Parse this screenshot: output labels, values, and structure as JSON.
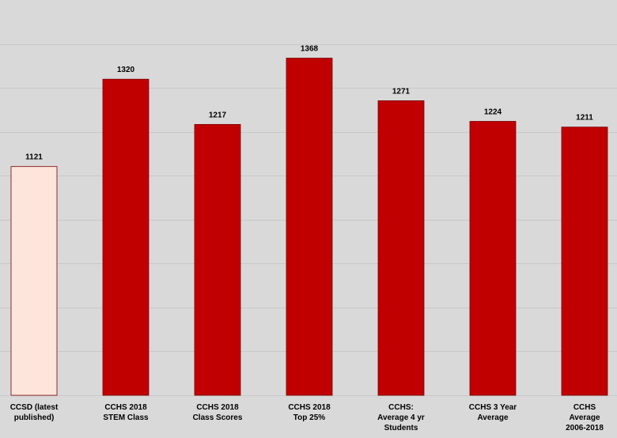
{
  "chart_data": {
    "type": "bar",
    "categories": [
      [
        "CCSD (latest",
        "published)"
      ],
      [
        "CCHS 2018",
        "STEM Class"
      ],
      [
        "CCHS 2018",
        "Class Scores"
      ],
      [
        "CCHS 2018",
        "Top 25%"
      ],
      [
        "CCHS:",
        "Average 4 yr",
        "Students"
      ],
      [
        "CCHS  3 Year",
        "Average"
      ],
      [
        "CCHS",
        "Average",
        "2006-2018"
      ]
    ],
    "values": [
      1121,
      1320,
      1217,
      1368,
      1271,
      1224,
      1211
    ],
    "value_labels": [
      "1121",
      "1320",
      "1217",
      "1368",
      "1271",
      "1224",
      "1211"
    ],
    "bar_colors": [
      "#fde5dc",
      "#c00000",
      "#c00000",
      "#c00000",
      "#c00000",
      "#c00000",
      "#c00000"
    ],
    "background_color": "#d9d9d9",
    "gridline_color": "#c8c8c8",
    "ylim": [
      600,
      1450
    ],
    "grid": true,
    "gridline_values": [
      600,
      700,
      800,
      900,
      1000,
      1100,
      1200,
      1300,
      1400
    ],
    "legend": "none",
    "title": "",
    "xlabel": "",
    "ylabel": ""
  }
}
